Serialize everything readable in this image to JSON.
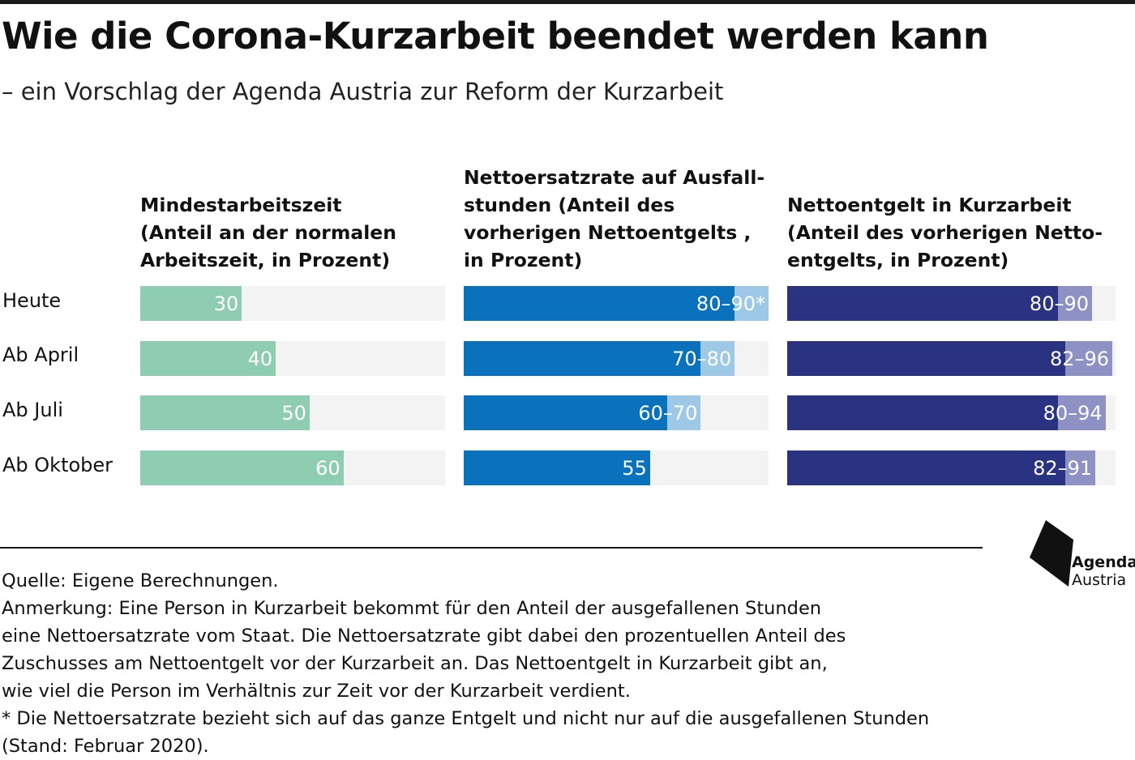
{
  "title": "Wie die Corona-Kurzarbeit beendet werden kann",
  "subtitle": "– ein Vorschlag der Agenda Austria zur Reform der Kurzarbeit",
  "colors": {
    "green": "#8ecdb1",
    "blue": "#0a72bc",
    "blue_light": "#9dc9e7",
    "navy": "#2a3382",
    "navy_light": "#8d91c4",
    "track": "#f3f3f3"
  },
  "chart_data": [
    {
      "type": "bar",
      "orientation": "horizontal",
      "title": "Mindestarbeitszeit\n(Anteil an der normalen\nArbeitszeit, in Prozent)",
      "categories": [
        "Heute",
        "Ab April",
        "Ab Juli",
        "Ab Oktober"
      ],
      "xlim": [
        0,
        90
      ],
      "series": [
        {
          "values": [
            30,
            40,
            50,
            60
          ]
        }
      ],
      "data_labels": [
        "30",
        "40",
        "50",
        "60"
      ]
    },
    {
      "type": "bar",
      "orientation": "horizontal",
      "title": "Nettoersatzrate auf Ausfall-\nstunden (Anteil des\nvorherigen Nettoentgelts ,\nin Prozent)",
      "categories": [
        "Heute",
        "Ab April",
        "Ab Juli",
        "Ab Oktober"
      ],
      "xlim": [
        0,
        90
      ],
      "series": [
        {
          "values": [
            80,
            70,
            60,
            55
          ]
        },
        {
          "values": [
            90,
            80,
            70,
            null
          ]
        }
      ],
      "data_labels": [
        "80–90*",
        "70–80",
        "60–70",
        "55"
      ]
    },
    {
      "type": "bar",
      "orientation": "horizontal",
      "title": "Nettoentgelt in Kurzarbeit\n(Anteil des vorherigen Netto-\nentgelts, in Prozent)",
      "categories": [
        "Heute",
        "Ab April",
        "Ab Juli",
        "Ab Oktober"
      ],
      "xlim": [
        0,
        96
      ],
      "series": [
        {
          "values": [
            80,
            82,
            80,
            82
          ]
        },
        {
          "values": [
            90,
            96,
            94,
            91
          ]
        }
      ],
      "data_labels": [
        "80–90",
        "82–96",
        "80–94",
        "82–91"
      ]
    }
  ],
  "footer": {
    "source": "Quelle: Eigene Berechnungen.",
    "note": "Anmerkung: Eine Person in Kurzarbeit bekommt für den Anteil der ausgefallenen Stunden\neine Nettoersatzrate vom Staat. Die Nettoersatzrate gibt dabei den prozentuellen Anteil des\nZuschusses am Nettoentgelt vor der Kurzarbeit an. Das Nettoentgelt in Kurzarbeit gibt an,\nwie viel die Person im Verhältnis zur Zeit vor der Kurzarbeit verdient.",
    "footnote": "* Die Nettoersatzrate bezieht sich auf das ganze Entgelt und nicht nur auf die ausgefallenen Stunden\n(Stand: Februar 2020)."
  },
  "logo": {
    "line1": "Agenda",
    "line2": "Austria"
  }
}
